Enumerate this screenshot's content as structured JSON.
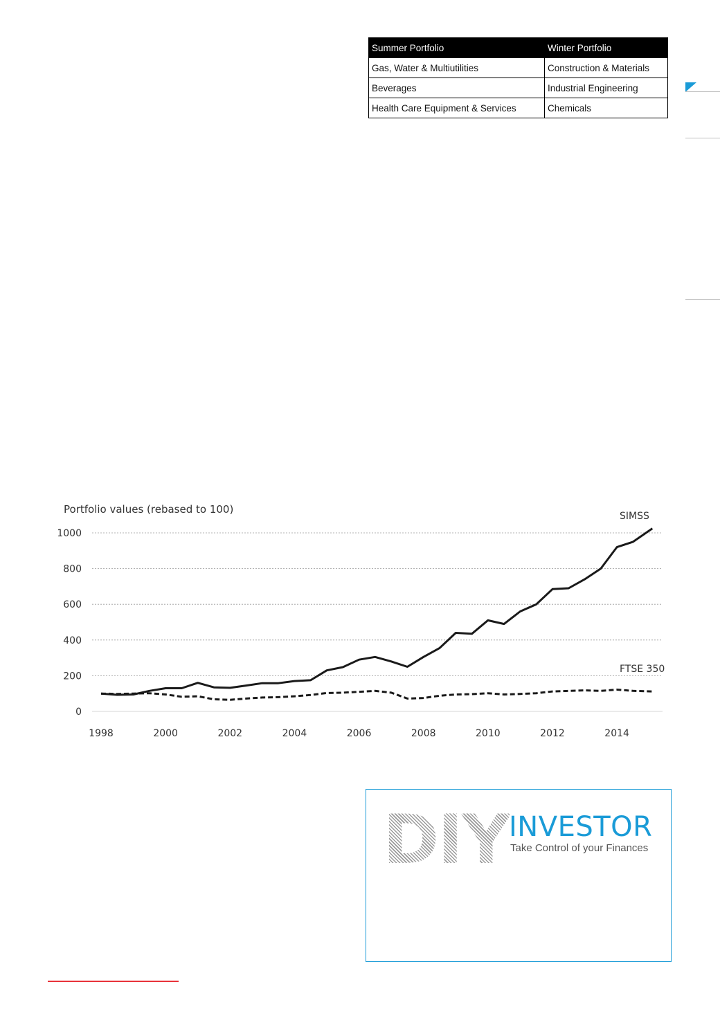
{
  "table": {
    "headers": [
      "Summer Portfolio",
      "Winter Portfolio"
    ],
    "rows": [
      [
        "Gas, Water & Multiutilities",
        "Construction & Materials"
      ],
      [
        "Beverages",
        "Industrial Engineering"
      ],
      [
        "Health Care Equipment & Services",
        "Chemicals"
      ]
    ]
  },
  "chart_data": {
    "type": "line",
    "title": "Portfolio values (rebased to 100)",
    "ylim": [
      0,
      1000
    ],
    "xlim": [
      1998,
      2015.2
    ],
    "yticks": [
      0,
      200,
      400,
      600,
      800,
      1000
    ],
    "xticks": [
      1998,
      2000,
      2002,
      2004,
      2006,
      2008,
      2010,
      2012,
      2014
    ],
    "grid": "horizontal dashed",
    "series": [
      {
        "name": "SIMSS",
        "style": "solid",
        "x": [
          1998,
          1998.5,
          1999,
          1999.5,
          2000,
          2000.5,
          2001,
          2001.5,
          2002,
          2002.5,
          2003,
          2003.5,
          2004,
          2004.5,
          2005,
          2005.5,
          2006,
          2006.5,
          2007,
          2007.5,
          2008,
          2008.5,
          2009,
          2009.5,
          2010,
          2010.5,
          2011,
          2011.5,
          2012,
          2012.5,
          2013,
          2013.5,
          2014,
          2014.5,
          2015.1
        ],
        "values": [
          100,
          93,
          95,
          115,
          130,
          130,
          160,
          135,
          132,
          145,
          158,
          158,
          170,
          175,
          230,
          248,
          290,
          305,
          280,
          250,
          305,
          355,
          440,
          435,
          510,
          490,
          560,
          600,
          685,
          690,
          740,
          800,
          920,
          950,
          1025
        ]
      },
      {
        "name": "FTSE 350",
        "style": "dashed",
        "x": [
          1998,
          1998.5,
          1999,
          1999.5,
          2000,
          2000.5,
          2001,
          2001.5,
          2002,
          2002.5,
          2003,
          2003.5,
          2004,
          2004.5,
          2005,
          2005.5,
          2006,
          2006.5,
          2007,
          2007.5,
          2008,
          2008.5,
          2009,
          2009.5,
          2010,
          2010.5,
          2011,
          2011.5,
          2012,
          2012.5,
          2013,
          2013.5,
          2014,
          2014.5,
          2015.1
        ],
        "values": [
          100,
          98,
          100,
          102,
          95,
          82,
          85,
          68,
          65,
          72,
          78,
          80,
          85,
          92,
          103,
          105,
          110,
          115,
          105,
          72,
          75,
          88,
          95,
          97,
          102,
          95,
          98,
          102,
          112,
          115,
          118,
          115,
          122,
          115,
          112
        ]
      }
    ]
  },
  "ad": {
    "logo_diy": "DIY",
    "logo_investor": "INVESTOR",
    "tagline": "Take Control of your Finances"
  },
  "colors": {
    "accent": "#1a9bd7",
    "footer_rule": "#e8333a"
  }
}
